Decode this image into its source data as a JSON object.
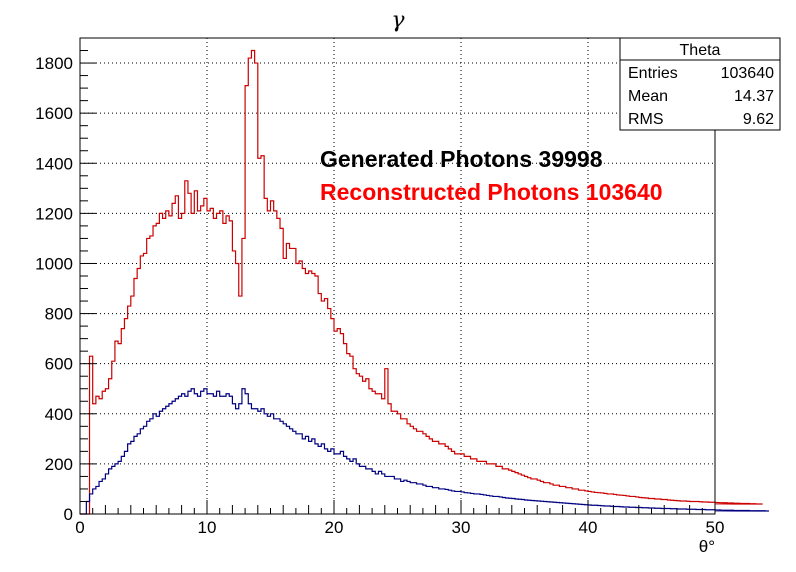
{
  "chart_data": {
    "type": "histogram",
    "title": "γ",
    "xlabel": "θ°",
    "ylabel": "",
    "xlim": [
      0,
      50
    ],
    "ylim": [
      0,
      1900
    ],
    "bin_width": 0.25,
    "grid": true,
    "x_ticks": [
      "0",
      "10",
      "20",
      "30",
      "40",
      "50"
    ],
    "y_ticks": [
      "0",
      "200",
      "400",
      "600",
      "800",
      "1000",
      "1200",
      "1400",
      "1600",
      "1800"
    ],
    "annotations": [
      {
        "text": "Generated Photons 39998",
        "color": "#000000"
      },
      {
        "text": "Reconstructed Photons 103640",
        "color": "#ff0000"
      }
    ],
    "stats_box": {
      "title": "Theta",
      "rows": [
        {
          "label": "Entries",
          "value": "103640"
        },
        {
          "label": "Mean",
          "value": "14.37"
        },
        {
          "label": "RMS",
          "value": "9.62"
        }
      ]
    },
    "series": [
      {
        "color": "#cc0000",
        "x_start": 0,
        "values": [
          0,
          0,
          0,
          630,
          440,
          470,
          460,
          490,
          500,
          540,
          610,
          690,
          680,
          740,
          780,
          830,
          870,
          940,
          980,
          1030,
          1040,
          1100,
          1110,
          1150,
          1160,
          1200,
          1180,
          1210,
          1190,
          1240,
          1270,
          1180,
          1200,
          1330,
          1280,
          1200,
          1290,
          1210,
          1230,
          1260,
          1210,
          1220,
          1180,
          1200,
          1210,
          1160,
          1190,
          1170,
          1050,
          1000,
          870,
          1100,
          1710,
          1820,
          1850,
          1800,
          1420,
          1430,
          1260,
          1210,
          1250,
          1210,
          1180,
          1140,
          1020,
          1080,
          1060,
          1060,
          1000,
          1010,
          980,
          960,
          970,
          960,
          950,
          880,
          850,
          860,
          820,
          780,
          730,
          740,
          720,
          680,
          640,
          630,
          580,
          560,
          550,
          530,
          540,
          500,
          490,
          480,
          480,
          460,
          580,
          440,
          410,
          410,
          400,
          380,
          380,
          360,
          350,
          340,
          330,
          330,
          320,
          310,
          300,
          290,
          290,
          280,
          280,
          270,
          260,
          250,
          240,
          240,
          240,
          230,
          230,
          220,
          220,
          210,
          210,
          210,
          200,
          200,
          200,
          190,
          190,
          180,
          180,
          175,
          170,
          165,
          160,
          155,
          150,
          145,
          140,
          140,
          135,
          130,
          125,
          125,
          120,
          115,
          115,
          110,
          110,
          105,
          105,
          100,
          100,
          95,
          95,
          92,
          90,
          88,
          86,
          85,
          84,
          82,
          80,
          80,
          78,
          76,
          75,
          74,
          72,
          70,
          70,
          68,
          66,
          65,
          64,
          62,
          62,
          60,
          60,
          58,
          58,
          56,
          55,
          54,
          53,
          52,
          52,
          51,
          50,
          50,
          50,
          49,
          48,
          48,
          47,
          47,
          46,
          46,
          45,
          45,
          45,
          44,
          44,
          43,
          43,
          42,
          42,
          42,
          41,
          41,
          40,
          40
        ]
      },
      {
        "color": "#000080",
        "x_start": 0,
        "values": [
          0,
          0,
          50,
          80,
          100,
          110,
          130,
          140,
          160,
          180,
          190,
          200,
          210,
          230,
          250,
          280,
          290,
          310,
          320,
          340,
          350,
          370,
          380,
          400,
          390,
          410,
          420,
          430,
          440,
          450,
          460,
          470,
          480,
          470,
          490,
          500,
          480,
          470,
          490,
          500,
          480,
          480,
          470,
          490,
          470,
          470,
          480,
          470,
          440,
          420,
          440,
          500,
          480,
          440,
          420,
          420,
          410,
          420,
          400,
          390,
          400,
          380,
          380,
          370,
          360,
          350,
          340,
          330,
          320,
          320,
          300,
          310,
          290,
          300,
          280,
          270,
          280,
          260,
          250,
          260,
          240,
          240,
          250,
          230,
          220,
          210,
          220,
          200,
          190,
          190,
          180,
          180,
          170,
          160,
          170,
          160,
          150,
          150,
          150,
          140,
          140,
          130,
          135,
          130,
          125,
          125,
          120,
          120,
          115,
          110,
          110,
          105,
          105,
          100,
          100,
          98,
          95,
          92,
          90,
          90,
          88,
          85,
          84,
          82,
          80,
          80,
          78,
          76,
          74,
          72,
          70,
          70,
          68,
          66,
          64,
          63,
          62,
          60,
          59,
          58,
          56,
          55,
          54,
          53,
          52,
          51,
          50,
          49,
          48,
          47,
          46,
          45,
          44,
          43,
          42,
          41,
          40,
          39,
          38,
          37,
          36,
          35,
          35,
          34,
          33,
          32,
          32,
          31,
          30,
          30,
          29,
          28,
          28,
          27,
          27,
          26,
          26,
          25,
          25,
          24,
          24,
          23,
          23,
          22,
          22,
          22,
          21,
          21,
          20,
          20,
          20,
          19,
          19,
          19,
          18,
          18,
          18,
          17,
          17,
          17,
          16,
          16,
          16,
          15,
          15,
          15,
          15,
          14,
          14,
          14,
          14,
          14,
          13,
          13,
          13,
          13,
          13,
          12
        ]
      }
    ]
  }
}
